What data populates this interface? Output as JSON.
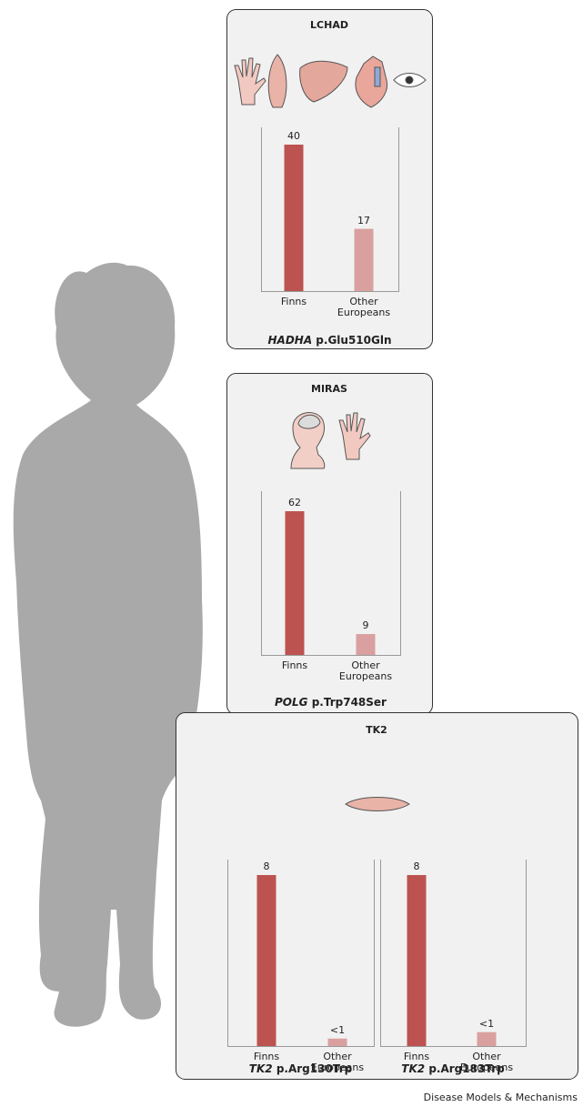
{
  "chart_data": [
    {
      "type": "bar",
      "title": "LCHAD",
      "categories": [
        "Finns",
        "Other Europeans"
      ],
      "values": [
        40,
        17
      ],
      "colors": [
        "#bc5350",
        "#d9a09f"
      ],
      "gene": "HADHA",
      "variant": "p.Glu510Gln"
    },
    {
      "type": "bar",
      "title": "MIRAS",
      "categories": [
        "Finns",
        "Other Europeans"
      ],
      "values": [
        62,
        9
      ],
      "colors": [
        "#bc5350",
        "#d9a09f"
      ],
      "gene": "POLG",
      "variant": "p.Trp748Ser"
    },
    {
      "type": "bar",
      "title": "TK2",
      "categories": [
        "Finns",
        "Other Europeans"
      ],
      "values": [
        8,
        0.35
      ],
      "value_labels": [
        "8",
        "<1"
      ],
      "colors": [
        "#bc5350",
        "#d9a09f"
      ],
      "gene": "TK2",
      "variant": "p.Arg130Trp"
    },
    {
      "type": "bar",
      "categories": [
        "Finns",
        "Other Europeans"
      ],
      "values": [
        8,
        0.65
      ],
      "value_labels": [
        "8",
        "<1"
      ],
      "colors": [
        "#bc5350",
        "#d9a09f"
      ],
      "gene": "TK2",
      "variant": "p.Arg183Trp"
    }
  ],
  "source": "Disease Models & Mechanisms"
}
